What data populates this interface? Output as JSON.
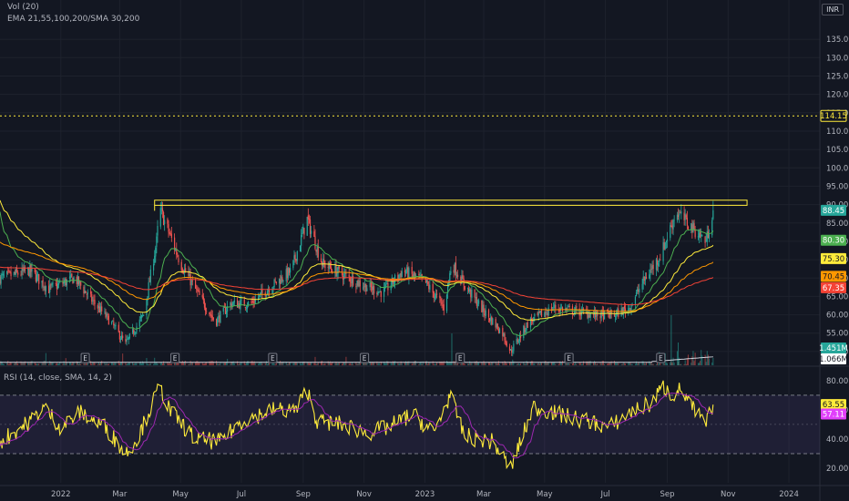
{
  "header": {
    "vol_label": "Vol (20)",
    "ema_label": "EMA 21,55,100,200/SMA 30,200",
    "currency": "INR",
    "rsi_label": "RSI (14, close, SMA, 14, 2)"
  },
  "colors": {
    "background": "#131722",
    "grid": "#1e222d",
    "axis_text": "#b2b5be",
    "up_candle": "#26a69a",
    "down_candle": "#ef5350",
    "ema21": "#4caf50",
    "ema55": "#ffeb3b",
    "ema100": "#ff9800",
    "ema200": "#f44336",
    "volume_sma": "#d1d4dc",
    "rsi_line": "#ffeb3b",
    "rsi_ma": "#9c27b0",
    "rsi_band": "#7e57c2",
    "resistance_zone": "#ffeb3b",
    "target_line": "#ffeb3b"
  },
  "chart_data": {
    "type": "candlestick",
    "price_axis": {
      "ticks": [
        "135.00",
        "130.00",
        "125.00",
        "120.00",
        "115.00",
        "110.00",
        "105.00",
        "100.00",
        "95.00",
        "90.00",
        "85.00",
        "80.00",
        "75.00",
        "70.00",
        "65.00",
        "60.00",
        "55.00",
        "50.00"
      ],
      "ylim": [
        47,
        139
      ]
    },
    "time_axis": {
      "ticks": [
        "2022",
        "Mar",
        "May",
        "Jul",
        "Sep",
        "Nov",
        "2023",
        "Mar",
        "May",
        "Jul",
        "Sep",
        "Nov",
        "2024"
      ]
    },
    "price_labels": [
      {
        "text": "114.15",
        "value": 114.15,
        "bg": "#131722",
        "fg": "#ffeb3b",
        "border": "#ffeb3b"
      },
      {
        "text": "88.45",
        "value": 88.45,
        "bg": "#26a69a",
        "fg": "#ffffff",
        "border": ""
      },
      {
        "text": "80.30",
        "value": 80.3,
        "bg": "#4caf50",
        "fg": "#ffffff",
        "border": ""
      },
      {
        "text": "75.30",
        "value": 75.3,
        "bg": "#ffeb3b",
        "fg": "#131722",
        "border": ""
      },
      {
        "text": "70.45",
        "value": 70.45,
        "bg": "#ff9800",
        "fg": "#131722",
        "border": ""
      },
      {
        "text": "67.35",
        "value": 67.35,
        "bg": "#f44336",
        "fg": "#ffffff",
        "border": ""
      }
    ],
    "volume_labels": [
      {
        "text": "1.451M",
        "bg": "#26a69a",
        "fg": "#ffffff"
      },
      {
        "text": "1.066M",
        "bg": "#ffffff",
        "fg": "#131722"
      }
    ],
    "earnings_markers": [
      {
        "date": "2022-01-25",
        "text": "E"
      },
      {
        "date": "2022-04-25",
        "text": "E"
      },
      {
        "date": "2022-08-01",
        "text": "E"
      },
      {
        "date": "2022-11-01",
        "text": "E"
      },
      {
        "date": "2023-02-05",
        "text": "E"
      },
      {
        "date": "2023-05-25",
        "text": "E"
      },
      {
        "date": "2023-08-25",
        "text": "E"
      }
    ],
    "resistance_zone": {
      "from_date": "2022-04-05",
      "to_date": "2023-11-20",
      "low": 89.8,
      "high": 91.2
    },
    "target_line": 114.15,
    "rsi": {
      "ticks": [
        "80.00",
        "60.00",
        "40.00",
        "20.00"
      ],
      "upper_band": 70,
      "lower_band": 30,
      "last_value": 63.55,
      "last_ma": 57.11,
      "labels": [
        {
          "text": "63.55",
          "bg": "#ffeb3b",
          "fg": "#131722"
        },
        {
          "text": "57.11",
          "bg": "#e040fb",
          "fg": "#ffffff"
        }
      ]
    },
    "price_path_anchors": [
      [
        "2021-11-01",
        70
      ],
      [
        "2021-12-01",
        72
      ],
      [
        "2021-12-20",
        67
      ],
      [
        "2022-01-15",
        70
      ],
      [
        "2022-02-01",
        64
      ],
      [
        "2022-02-20",
        58
      ],
      [
        "2022-03-07",
        52
      ],
      [
        "2022-03-25",
        60
      ],
      [
        "2022-04-07",
        80
      ],
      [
        "2022-04-10",
        89
      ],
      [
        "2022-04-20",
        82
      ],
      [
        "2022-05-01",
        74
      ],
      [
        "2022-05-20",
        65
      ],
      [
        "2022-06-05",
        58
      ],
      [
        "2022-06-20",
        63
      ],
      [
        "2022-07-10",
        63
      ],
      [
        "2022-08-01",
        68
      ],
      [
        "2022-08-20",
        72
      ],
      [
        "2022-09-05",
        86
      ],
      [
        "2022-09-20",
        74
      ],
      [
        "2022-10-10",
        71
      ],
      [
        "2022-11-01",
        68
      ],
      [
        "2022-11-20",
        66
      ],
      [
        "2022-12-10",
        72
      ],
      [
        "2023-01-01",
        69
      ],
      [
        "2023-01-20",
        62
      ],
      [
        "2023-01-28",
        74
      ],
      [
        "2023-02-10",
        68
      ],
      [
        "2023-03-01",
        61
      ],
      [
        "2023-03-20",
        55
      ],
      [
        "2023-03-28",
        50
      ],
      [
        "2023-04-15",
        58
      ],
      [
        "2023-05-10",
        62
      ],
      [
        "2023-06-01",
        61
      ],
      [
        "2023-06-20",
        60
      ],
      [
        "2023-07-10",
        60
      ],
      [
        "2023-07-25",
        62
      ],
      [
        "2023-08-10",
        70
      ],
      [
        "2023-08-25",
        76
      ],
      [
        "2023-09-10",
        88
      ],
      [
        "2023-09-25",
        84
      ],
      [
        "2023-10-10",
        80
      ],
      [
        "2023-10-17",
        88.45
      ]
    ],
    "rsi_path_anchors": [
      [
        "2021-11-01",
        38
      ],
      [
        "2021-12-01",
        52
      ],
      [
        "2021-12-15",
        62
      ],
      [
        "2022-01-01",
        48
      ],
      [
        "2022-01-20",
        58
      ],
      [
        "2022-02-15",
        48
      ],
      [
        "2022-03-07",
        30
      ],
      [
        "2022-03-20",
        42
      ],
      [
        "2022-04-10",
        76
      ],
      [
        "2022-04-20",
        60
      ],
      [
        "2022-05-15",
        40
      ],
      [
        "2022-06-10",
        38
      ],
      [
        "2022-07-01",
        52
      ],
      [
        "2022-08-01",
        60
      ],
      [
        "2022-08-25",
        60
      ],
      [
        "2022-09-05",
        74
      ],
      [
        "2022-09-15",
        52
      ],
      [
        "2022-10-10",
        50
      ],
      [
        "2022-11-05",
        44
      ],
      [
        "2022-11-25",
        48
      ],
      [
        "2022-12-20",
        57
      ],
      [
        "2023-01-10",
        44
      ],
      [
        "2023-01-26",
        70
      ],
      [
        "2023-02-10",
        42
      ],
      [
        "2023-03-10",
        38
      ],
      [
        "2023-03-28",
        20
      ],
      [
        "2023-04-20",
        62
      ],
      [
        "2023-05-20",
        56
      ],
      [
        "2023-06-15",
        52
      ],
      [
        "2023-07-05",
        48
      ],
      [
        "2023-07-25",
        58
      ],
      [
        "2023-08-15",
        64
      ],
      [
        "2023-08-28",
        76
      ],
      [
        "2023-09-05",
        70
      ],
      [
        "2023-09-15",
        74
      ],
      [
        "2023-09-25",
        62
      ],
      [
        "2023-10-10",
        50
      ],
      [
        "2023-10-17",
        63.55
      ]
    ]
  }
}
